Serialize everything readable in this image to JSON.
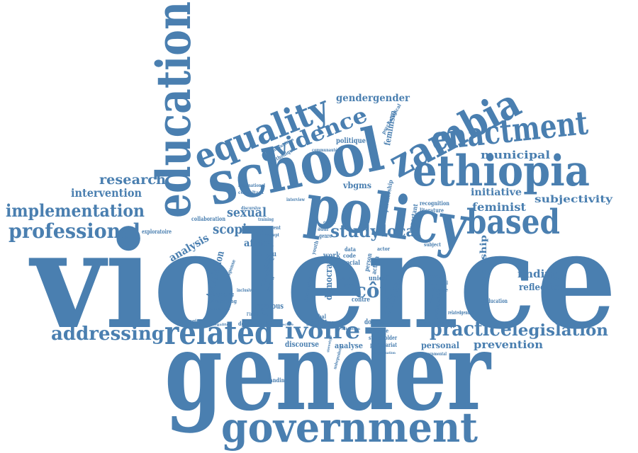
{
  "color": "#4a7fb0",
  "words": {
    "violence": "violence",
    "gender": "gender",
    "government": "government",
    "education": "education",
    "school": "school",
    "policy": "policy",
    "ethiopia": "ethiopia",
    "zambia": "zambia",
    "equality": "equality",
    "enactment": "enactment",
    "evidence": "evidence",
    "based": "based",
    "related": "related",
    "ivoire": "ivoire",
    "practice": "practice",
    "legislation": "legislation",
    "addressing": "addressing",
    "professional": "professional",
    "implementation": "implementation",
    "intervention": "intervention",
    "research": "research",
    "study": "study",
    "local": "local",
    "scoping": "scoping",
    "sexual": "sexual",
    "analysis": "analysis",
    "feminist": "feminist",
    "initiative": "initiative",
    "subjectivity": "subjectivity",
    "municipal": "municipal",
    "gendergender": "gendergender",
    "cote": "côte",
    "finding": "finding",
    "reflection": "reflection",
    "prevention": "prevention",
    "relationship": "relationship",
    "translation": "translation",
    "africa": "africa",
    "milieu": "milieu",
    "democrats": "democrats",
    "national": "national",
    "understanding": "understanding",
    "scolaire": "scolaire",
    "discourse": "discourse",
    "analyse": "analyse",
    "personal": "personal",
    "dimensional": "dimensional",
    "donnees": "données",
    "mondiale": "mondiale",
    "stakeholder": "stakeholder",
    "partenariat": "partenariat",
    "development": "development",
    "challenging": "challenging",
    "global": "global",
    "unicef": "unicef",
    "contre": "contre",
    "rigorous": "rigorous",
    "struggling": "struggling",
    "engaging": "engaging",
    "conduct": "conduct",
    "vbgms": "vbgms",
    "feminism": "feminism",
    "politique": "politique",
    "methodique": "méthodique",
    "consultant": "consultant",
    "collaboration": "collaboration",
    "exploratoire": "exploratoire",
    "present": "present",
    "training": "training",
    "partnership": "partnership",
    "recognition": "recognition",
    "literature": "literature",
    "important": "important",
    "effective": "effective",
    "potential": "potential",
    "planning": "planning",
    "support": "support",
    "social": "social",
    "data": "data",
    "code": "code",
    "person": "person",
    "action": "action",
    "work": "work",
    "genre": "genre",
    "more": "more",
    "report": "report",
    "actor": "actor",
    "interview": "interview",
    "discursive": "discursive",
    "policies": "policies",
    "relatedgender": "relatedgender",
    "leducation": "l'éducation",
    "psychological": "psychological",
    "international": "international",
    "communities": "communities",
    "programming": "programming",
    "inclusive": "inclusive",
    "concept": "concept",
    "resource": "resource",
    "knowledge": "knowledge",
    "linitiative": "l'initiative",
    "addr": "addr",
    "order": "order",
    "involvement": "involvement",
    "subject": "subject",
    "contribution": "contribution",
    "stereotype": "stereotype",
    "organisation": "organisation",
    "inegalites": "inégalités",
    "objective": "objective",
    "attention": "attention",
    "governmental": "governmental",
    "undergendered": "undergendered",
    "response": "response",
    "review": "review",
    "process": "process",
    "youth": "youth",
    "pratique": "pratique",
    "health": "health",
    "formation": "formation",
    "commanditaire": "communauté",
    "challenge": "challenge",
    "exposing": "exposing",
    "lunicef": "l'unicef",
    "focused": "focused",
    "sixteen": "sixteen",
    "strategy": "strategy"
  }
}
